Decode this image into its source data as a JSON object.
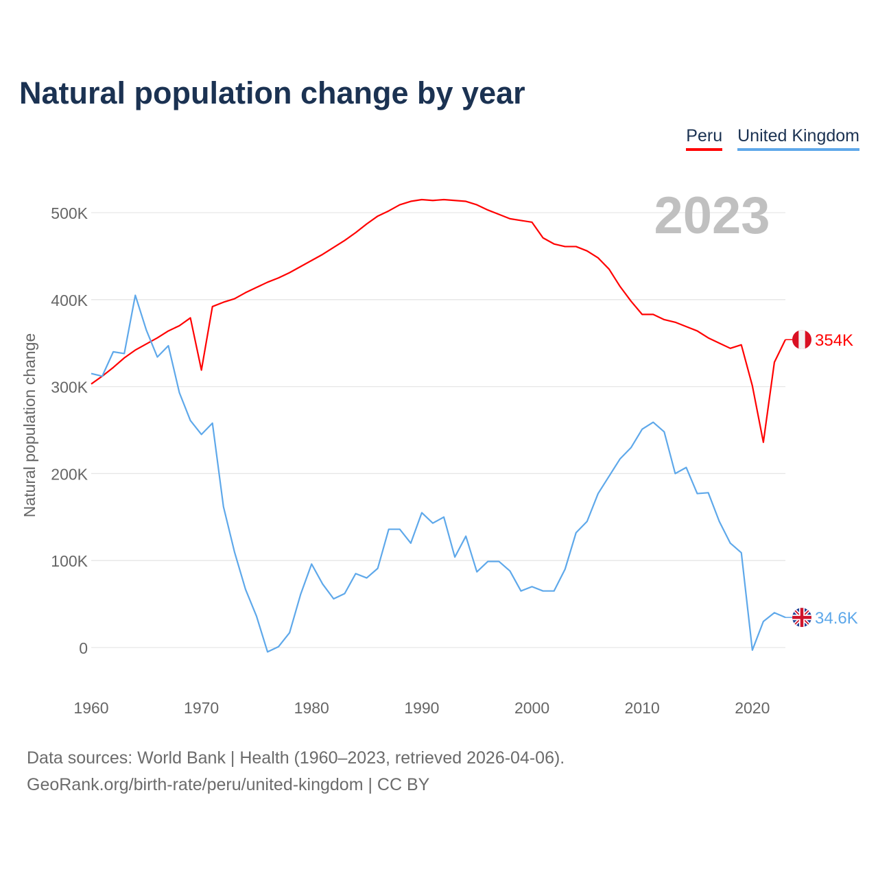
{
  "chart_data": {
    "type": "line",
    "title": "Natural population change by year",
    "xlabel": "",
    "ylabel": "Natural population change",
    "ylim": [
      -50000,
      540000
    ],
    "xlim": [
      1960,
      2023
    ],
    "grid": true,
    "legend_placement": "top-right",
    "year_watermark": "2023",
    "y_ticks": [
      {
        "v": 0,
        "label": "0"
      },
      {
        "v": 100000,
        "label": "100K"
      },
      {
        "v": 200000,
        "label": "200K"
      },
      {
        "v": 300000,
        "label": "300K"
      },
      {
        "v": 400000,
        "label": "400K"
      },
      {
        "v": 500000,
        "label": "500K"
      }
    ],
    "x_ticks": [
      {
        "v": 1960,
        "label": "1960"
      },
      {
        "v": 1970,
        "label": "1970"
      },
      {
        "v": 1980,
        "label": "1980"
      },
      {
        "v": 1990,
        "label": "1990"
      },
      {
        "v": 2000,
        "label": "2000"
      },
      {
        "v": 2010,
        "label": "2010"
      },
      {
        "v": 2020,
        "label": "2020"
      }
    ],
    "x_start": 1960,
    "series": [
      {
        "name": "Peru",
        "color": "#ff0000",
        "end_label": "354K",
        "flag": "peru-flag",
        "values": [
          303,
          312,
          322,
          333,
          342,
          349,
          356,
          364,
          370,
          379,
          319,
          392,
          397,
          401,
          408,
          414,
          420,
          425,
          431,
          438,
          445,
          452,
          460,
          468,
          477,
          487,
          496,
          502,
          509,
          513,
          515,
          514,
          515,
          514,
          513,
          509,
          503,
          498,
          493,
          491,
          489,
          471,
          464,
          461,
          461,
          456,
          448,
          435,
          415,
          398,
          383,
          383,
          377,
          374,
          369,
          364,
          356,
          350,
          344,
          348,
          301,
          236,
          328,
          354
        ]
      },
      {
        "name": "United Kingdom",
        "color": "#5ea8ea",
        "end_label": "34.6K",
        "flag": "uk-flag",
        "values": [
          315,
          312,
          340,
          338,
          405,
          365,
          334,
          347,
          293,
          261,
          245,
          258,
          162,
          110,
          67,
          36,
          -5,
          1,
          17,
          61,
          96,
          73,
          56,
          62,
          85,
          80,
          91,
          136,
          136,
          120,
          155,
          143,
          150,
          104,
          128,
          87,
          99,
          99,
          88,
          65,
          70,
          65,
          65,
          90,
          132,
          145,
          177,
          197,
          217,
          230,
          251,
          259,
          248,
          200,
          207,
          177,
          178,
          145,
          120,
          109,
          -3,
          30,
          40,
          34.6
        ]
      }
    ],
    "value_unit": "thousands"
  },
  "footer": {
    "line1": "Data sources: World Bank | Health (1960–2023, retrieved 2026-04-06).",
    "line2": "GeoRank.org/birth-rate/peru/united-kingdom | CC BY"
  }
}
